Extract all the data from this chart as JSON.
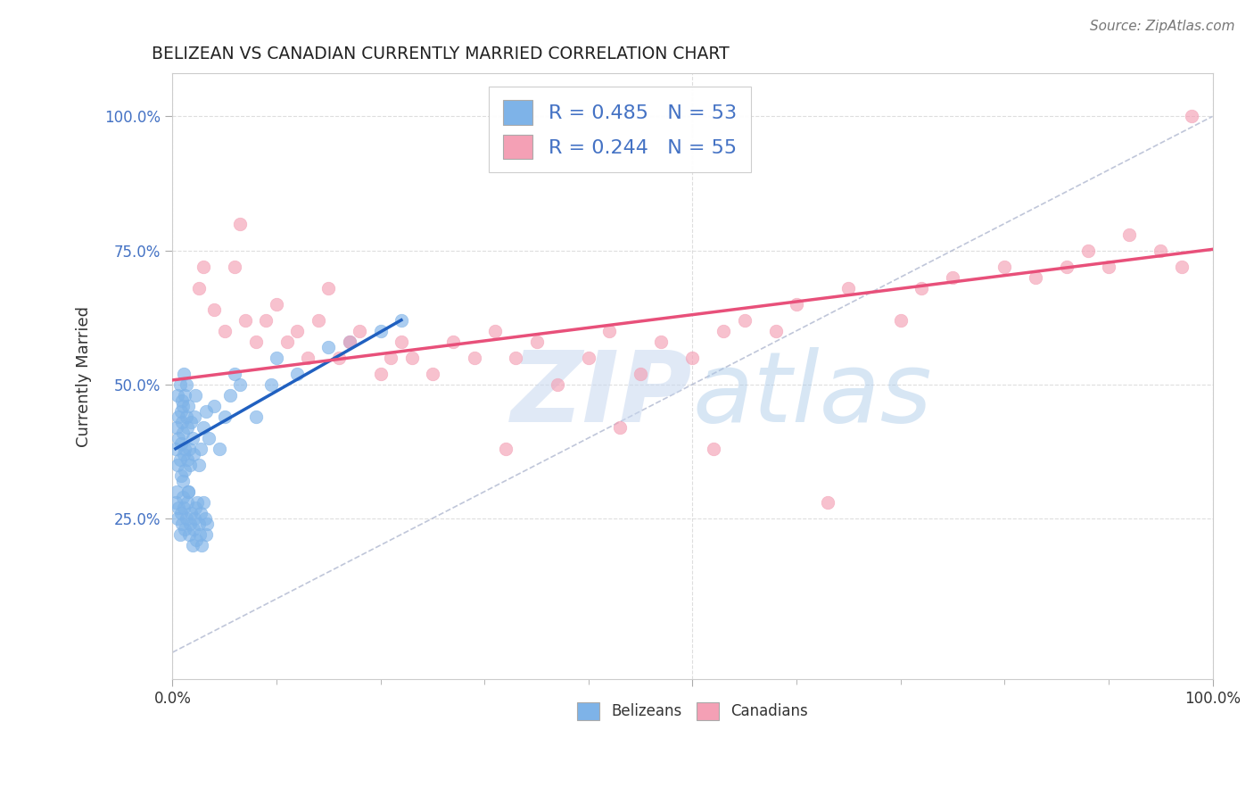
{
  "title": "BELIZEAN VS CANADIAN CURRENTLY MARRIED CORRELATION CHART",
  "source_text": "Source: ZipAtlas.com",
  "ylabel": "Currently Married",
  "ytick_labels": [
    "25.0%",
    "50.0%",
    "75.0%",
    "100.0%"
  ],
  "ytick_values": [
    0.25,
    0.5,
    0.75,
    1.0
  ],
  "xlim": [
    0.0,
    1.0
  ],
  "ylim": [
    -0.05,
    1.08
  ],
  "R_belizean": 0.485,
  "N_belizean": 53,
  "R_canadian": 0.244,
  "N_canadian": 55,
  "belizean_color": "#7EB3E8",
  "canadian_color": "#F4A0B5",
  "belizean_line_color": "#2060C0",
  "canadian_line_color": "#E8507A",
  "ref_line_color": "#B0B8D0",
  "legend_text_color": "#4472C4",
  "watermark_color": "#C8D8F0",
  "bel_x": [
    0.003,
    0.004,
    0.005,
    0.005,
    0.006,
    0.006,
    0.007,
    0.007,
    0.008,
    0.008,
    0.008,
    0.009,
    0.009,
    0.01,
    0.01,
    0.01,
    0.011,
    0.011,
    0.012,
    0.012,
    0.012,
    0.013,
    0.013,
    0.014,
    0.014,
    0.015,
    0.015,
    0.016,
    0.017,
    0.018,
    0.019,
    0.02,
    0.021,
    0.022,
    0.025,
    0.027,
    0.03,
    0.032,
    0.035,
    0.04,
    0.045,
    0.05,
    0.055,
    0.06,
    0.065,
    0.08,
    0.095,
    0.1,
    0.12,
    0.15,
    0.17,
    0.2,
    0.22
  ],
  "bel_y": [
    0.38,
    0.42,
    0.35,
    0.48,
    0.4,
    0.44,
    0.36,
    0.5,
    0.33,
    0.45,
    0.39,
    0.43,
    0.47,
    0.32,
    0.41,
    0.46,
    0.37,
    0.52,
    0.34,
    0.48,
    0.38,
    0.44,
    0.5,
    0.36,
    0.42,
    0.3,
    0.46,
    0.38,
    0.35,
    0.43,
    0.4,
    0.37,
    0.44,
    0.48,
    0.35,
    0.38,
    0.42,
    0.45,
    0.4,
    0.46,
    0.38,
    0.44,
    0.48,
    0.52,
    0.5,
    0.44,
    0.5,
    0.55,
    0.52,
    0.57,
    0.58,
    0.6,
    0.62
  ],
  "can_x": [
    0.025,
    0.03,
    0.04,
    0.05,
    0.06,
    0.065,
    0.07,
    0.08,
    0.09,
    0.1,
    0.11,
    0.12,
    0.13,
    0.14,
    0.15,
    0.16,
    0.17,
    0.18,
    0.2,
    0.21,
    0.22,
    0.23,
    0.25,
    0.27,
    0.29,
    0.31,
    0.33,
    0.35,
    0.37,
    0.4,
    0.42,
    0.45,
    0.47,
    0.5,
    0.53,
    0.55,
    0.58,
    0.6,
    0.65,
    0.7,
    0.72,
    0.75,
    0.8,
    0.83,
    0.86,
    0.88,
    0.9,
    0.92,
    0.95,
    0.97,
    0.32,
    0.43,
    0.52,
    0.63,
    0.98
  ],
  "can_y": [
    0.68,
    0.72,
    0.64,
    0.6,
    0.72,
    0.8,
    0.62,
    0.58,
    0.62,
    0.65,
    0.58,
    0.6,
    0.55,
    0.62,
    0.68,
    0.55,
    0.58,
    0.6,
    0.52,
    0.55,
    0.58,
    0.55,
    0.52,
    0.58,
    0.55,
    0.6,
    0.55,
    0.58,
    0.5,
    0.55,
    0.6,
    0.52,
    0.58,
    0.55,
    0.6,
    0.62,
    0.6,
    0.65,
    0.68,
    0.62,
    0.68,
    0.7,
    0.72,
    0.7,
    0.72,
    0.75,
    0.72,
    0.78,
    0.75,
    0.72,
    0.38,
    0.42,
    0.38,
    0.28,
    1.0
  ],
  "bel_x_low": [
    0.003,
    0.004,
    0.005,
    0.006,
    0.007,
    0.008,
    0.009,
    0.01,
    0.011,
    0.012,
    0.013,
    0.014,
    0.015,
    0.016,
    0.017,
    0.018,
    0.019,
    0.02,
    0.021,
    0.022,
    0.023,
    0.024,
    0.025,
    0.026,
    0.027,
    0.028,
    0.03,
    0.031,
    0.032,
    0.033
  ],
  "bel_y_low": [
    0.28,
    0.3,
    0.25,
    0.27,
    0.22,
    0.26,
    0.24,
    0.29,
    0.27,
    0.23,
    0.25,
    0.28,
    0.3,
    0.22,
    0.24,
    0.26,
    0.2,
    0.23,
    0.25,
    0.27,
    0.21,
    0.28,
    0.24,
    0.22,
    0.26,
    0.2,
    0.28,
    0.25,
    0.22,
    0.24
  ],
  "bel_line_x0": 0.003,
  "bel_line_x1": 0.22,
  "bel_line_y0": 0.38,
  "bel_line_y1": 0.62,
  "can_line_x0": 0.0,
  "can_line_x1": 1.0,
  "can_line_y0": 0.508,
  "can_line_y1": 0.752
}
